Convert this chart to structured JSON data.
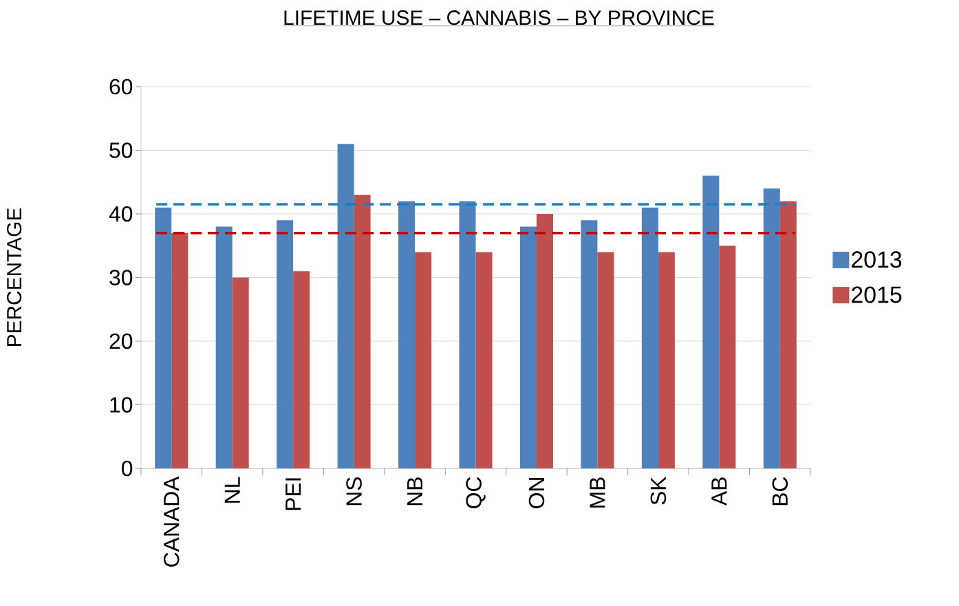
{
  "chart_data": {
    "type": "bar",
    "title": "LIFETIME USE – CANNABIS – BY PROVINCE",
    "ylabel": "PERCENTAGE",
    "categories": [
      "CANADA",
      "NL",
      "PEI",
      "NS",
      "NB",
      "QC",
      "ON",
      "MB",
      "SK",
      "AB",
      "BC"
    ],
    "series": [
      {
        "name": "2013",
        "color": "#4f81bd",
        "values": [
          41,
          38,
          39,
          51,
          42,
          42,
          38,
          39,
          41,
          46,
          44
        ]
      },
      {
        "name": "2015",
        "color": "#c0504d",
        "values": [
          37,
          30,
          31,
          43,
          34,
          34,
          40,
          34,
          34,
          35,
          42
        ]
      }
    ],
    "ylim": [
      0,
      60
    ],
    "yticks": [
      0,
      10,
      20,
      30,
      40,
      50,
      60
    ],
    "grid": "y",
    "legend": "right",
    "ref_lines": [
      {
        "axis": "y",
        "value": 41.5,
        "color": "#1f7fc0",
        "line_style": "dashed"
      },
      {
        "axis": "y",
        "value": 37,
        "color": "#c00000",
        "line_style": "dashed"
      }
    ]
  }
}
